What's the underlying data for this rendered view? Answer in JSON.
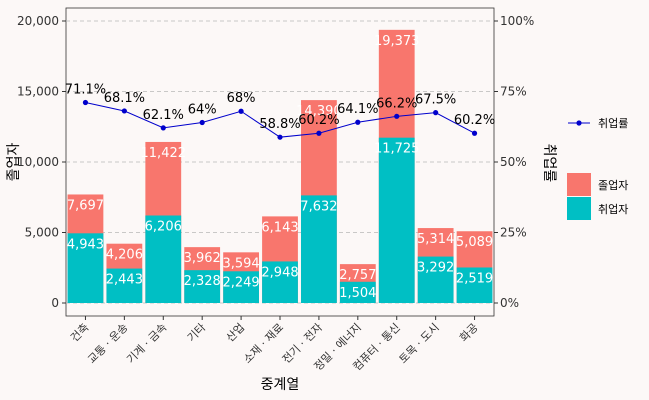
{
  "chart_data": {
    "type": "bar",
    "categories": [
      "건축",
      "교통 · 운송",
      "기계 · 금속",
      "기타",
      "산업",
      "소재 · 재료",
      "전기 · 전자",
      "정밀 · 에너지",
      "컴퓨터 · 통신",
      "토목 · 도시",
      "화공"
    ],
    "series": [
      {
        "name": "졸업자",
        "values": [
          7697,
          4206,
          11422,
          3962,
          3594,
          6143,
          14390,
          2757,
          19373,
          5314,
          5089
        ],
        "color": "#f8766d"
      },
      {
        "name": "취업자",
        "values": [
          4943,
          2443,
          6206,
          2328,
          2249,
          2948,
          7632,
          1504,
          11725,
          3292,
          2519
        ],
        "color": "#00bfc4"
      }
    ],
    "bar_labels": {
      "졸업자": [
        "7,697",
        "4,206",
        "11,422",
        "3,962",
        "3,594",
        "6,143",
        "14,390",
        "2,757",
        "19,373",
        "5,314",
        "5,089"
      ],
      "취업자": [
        "4,943",
        "2,443",
        "6,206",
        "2,328",
        "2,249",
        "2,948",
        "7,632",
        "1,504",
        "11,725",
        "3,292",
        "2,519"
      ]
    },
    "line": {
      "name": "취업률",
      "values": [
        71.1,
        68.1,
        62.1,
        64,
        68,
        58.8,
        60.2,
        64.1,
        66.2,
        67.5,
        60.2
      ],
      "labels": [
        "71.1%",
        "68.1%",
        "62.1%",
        "64%",
        "68%",
        "58.8%",
        "60.2%",
        "64.1%",
        "66.2%",
        "67.5%",
        "60.2%"
      ],
      "color": "#0000cc"
    },
    "xlabel": "중계열",
    "ylabel": "졸업자",
    "y2label": "취업률",
    "ylim": [
      0,
      20000
    ],
    "y2lim": [
      0,
      100
    ],
    "yticks": [
      "0",
      "5,000",
      "10,000",
      "15,000",
      "20,000"
    ],
    "y2ticks": [
      "0%",
      "25%",
      "50%",
      "75%",
      "100%"
    ],
    "grid": "horizontal dashed",
    "legend_placement": "right"
  }
}
